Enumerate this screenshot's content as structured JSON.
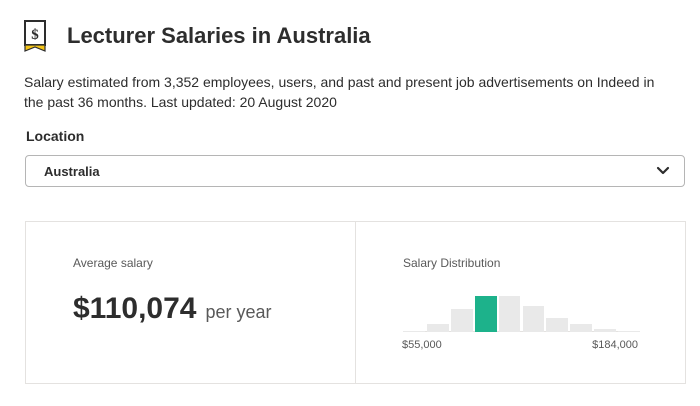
{
  "header": {
    "title": "Lecturer Salaries in Australia",
    "icon": "salary-dollar-icon"
  },
  "subtitle": "Salary estimated from 3,352 employees, users, and past and present job advertisements on Indeed in the past 36 months. Last updated: 20 August 2020",
  "location": {
    "label": "Location",
    "selected": "Australia"
  },
  "average": {
    "label": "Average salary",
    "value": "$110,074",
    "period": "per year"
  },
  "distribution": {
    "label": "Salary Distribution",
    "min_label": "$55,000",
    "max_label": "$184,000",
    "highlight_color": "#1db28b",
    "bar_color": "#e9e9e9",
    "bars": [
      0.03,
      0.22,
      0.65,
      1.0,
      1.0,
      0.72,
      0.38,
      0.22,
      0.08,
      0.04
    ],
    "highlight_index": 3
  }
}
